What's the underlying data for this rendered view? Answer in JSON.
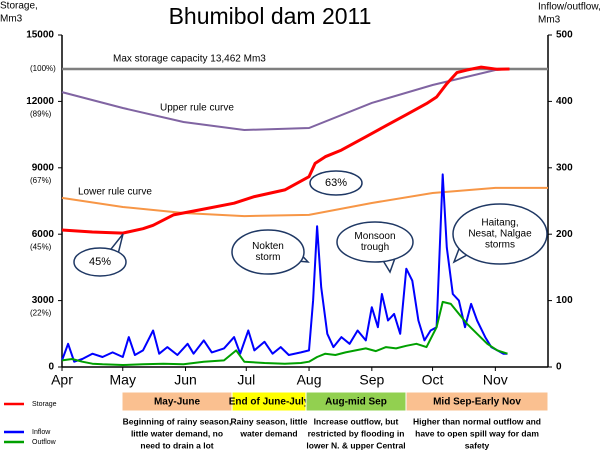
{
  "chart_data": {
    "type": "line",
    "title": "Bhumibol dam 2011",
    "ylabel": [
      "Storage,",
      "Mm3"
    ],
    "y2label": [
      "Inflow/outflow,",
      "Mm3"
    ],
    "xlim": [
      0,
      240
    ],
    "xticks": [
      {
        "value": 0,
        "label": "Apr"
      },
      {
        "value": 30,
        "label": "May"
      },
      {
        "value": 61,
        "label": "Jun"
      },
      {
        "value": 91,
        "label": "Jul"
      },
      {
        "value": 122,
        "label": "Aug"
      },
      {
        "value": 153,
        "label": "Sep"
      },
      {
        "value": 183,
        "label": "Oct"
      },
      {
        "value": 214,
        "label": "Nov"
      }
    ],
    "ylim": [
      0,
      15000
    ],
    "yticks": [
      0,
      3000,
      6000,
      9000,
      12000,
      15000
    ],
    "ytick_notes": [
      {
        "value": 13462,
        "label": "(100%)"
      },
      {
        "value": 12000,
        "label": "(89%)"
      },
      {
        "value": 9000,
        "label": "(67%)"
      },
      {
        "value": 6000,
        "label": "(45%)"
      },
      {
        "value": 3000,
        "label": "(22%)"
      }
    ],
    "y2lim": [
      0,
      500
    ],
    "y2ticks": [
      0,
      100,
      200,
      300,
      400,
      500
    ],
    "grid": false,
    "legend_position": "bottom-left",
    "series": [
      {
        "name": "Storage",
        "color": "#ff0000",
        "axis": "y",
        "x": [
          0,
          15,
          30,
          40,
          45,
          55,
          68,
          85,
          95,
          110,
          122,
          125,
          130,
          138,
          150,
          160,
          170,
          180,
          185,
          190,
          195,
          200,
          207,
          215,
          221
        ],
        "values": [
          6190,
          6100,
          6050,
          6250,
          6400,
          6870,
          7100,
          7400,
          7700,
          8000,
          8600,
          9200,
          9500,
          9800,
          10400,
          10900,
          11400,
          11900,
          12200,
          12800,
          13300,
          13420,
          13550,
          13450,
          13462
        ]
      },
      {
        "name": "Inflow",
        "color": "#0000ff",
        "axis": "y2",
        "x": [
          0,
          3,
          6,
          10,
          15,
          20,
          25,
          30,
          33,
          36,
          40,
          45,
          48,
          52,
          57,
          62,
          65,
          70,
          74,
          80,
          85,
          88,
          92,
          95,
          100,
          104,
          108,
          112,
          118,
          122,
          124,
          126,
          128,
          131,
          134,
          138,
          142,
          146,
          150,
          153,
          156,
          158,
          161,
          164,
          167,
          170,
          173,
          176,
          179,
          182,
          185,
          188,
          190,
          193,
          196,
          199,
          202,
          205,
          209,
          212,
          215,
          218,
          220
        ],
        "values": [
          10,
          35,
          8,
          12,
          20,
          15,
          22,
          15,
          45,
          18,
          25,
          55,
          20,
          30,
          18,
          35,
          20,
          40,
          22,
          28,
          45,
          20,
          55,
          25,
          38,
          20,
          30,
          18,
          22,
          25,
          100,
          212,
          120,
          50,
          30,
          45,
          35,
          55,
          40,
          90,
          60,
          110,
          70,
          80,
          50,
          148,
          130,
          70,
          40,
          55,
          60,
          290,
          180,
          110,
          100,
          60,
          95,
          70,
          45,
          30,
          25,
          20,
          20
        ]
      },
      {
        "name": "Outflow",
        "color": "#00a000",
        "axis": "y2",
        "x": [
          0,
          5,
          10,
          15,
          20,
          30,
          40,
          50,
          60,
          70,
          80,
          86,
          90,
          100,
          110,
          118,
          122,
          126,
          130,
          135,
          140,
          145,
          150,
          155,
          160,
          165,
          170,
          175,
          180,
          185,
          188,
          192,
          196,
          200,
          205,
          210,
          215,
          220
        ],
        "values": [
          10,
          12,
          8,
          5,
          4,
          3,
          4,
          5,
          4,
          8,
          10,
          25,
          8,
          6,
          5,
          6,
          8,
          15,
          20,
          18,
          22,
          25,
          28,
          24,
          30,
          28,
          32,
          35,
          30,
          60,
          98,
          95,
          80,
          65,
          50,
          35,
          25,
          20
        ]
      }
    ],
    "reference_curves": [
      {
        "name": "Max storage capacity 13,462 Mm3",
        "color": "#7f7f7f",
        "x": [
          0,
          240
        ],
        "values": [
          13462,
          13462
        ]
      },
      {
        "name": "Upper rule curve",
        "color": "#8064a2",
        "x": [
          0,
          30,
          60,
          90,
          122,
          153,
          183,
          214,
          220
        ],
        "values": [
          12420,
          11700,
          11070,
          10710,
          10800,
          11930,
          12740,
          13420,
          13462
        ]
      },
      {
        "name": "Lower rule curve",
        "color": "#f79646",
        "x": [
          0,
          30,
          60,
          90,
          122,
          153,
          183,
          214,
          240
        ],
        "values": [
          7640,
          7230,
          6960,
          6820,
          6870,
          7410,
          7860,
          8090,
          8090
        ]
      }
    ],
    "callouts": [
      {
        "lines": [
          "63%"
        ],
        "color": "#000000"
      },
      {
        "lines": [
          "45%"
        ],
        "color": "#000000"
      },
      {
        "lines": [
          "Nokten",
          "storm"
        ],
        "color": "#ff0000"
      },
      {
        "lines": [
          "Monsoon",
          "trough"
        ],
        "color": "#000000"
      },
      {
        "lines": [
          "Haitang,",
          "Nesat, Nalgae",
          "storms"
        ],
        "color": "#ff0000"
      }
    ],
    "periods": [
      {
        "title": "May-June",
        "color": "#fac090",
        "lines": [
          "Beginning of rainy season,",
          "little water demand, no",
          "need to drain a lot"
        ]
      },
      {
        "title": "End of June-July",
        "color": "#ffff00",
        "lines": [
          "Rainy season, little",
          "water demand"
        ]
      },
      {
        "title": "Aug-mid Sep",
        "color": "#92d050",
        "lines": [
          "Increase outflow, but",
          "restricted by flooding in",
          "lower N. & upper Central"
        ]
      },
      {
        "title": "Mid Sep-Early Nov",
        "color": "#fac090",
        "lines": [
          "Higher than normal outflow and",
          "have to open spill way for dam",
          "safety"
        ]
      }
    ]
  }
}
